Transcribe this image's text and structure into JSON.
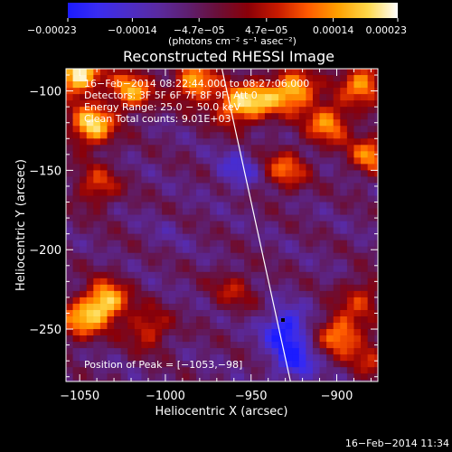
{
  "chart_data": {
    "type": "heatmap",
    "title": "Reconstructed RHESSI Image",
    "xlabel": "Heliocentric X (arcsec)",
    "ylabel": "Heliocentric Y (arcsec)",
    "xlim": [
      -1058,
      -876
    ],
    "ylim": [
      -283,
      -86
    ],
    "x_ticks": [
      -1050,
      -1000,
      -950,
      -900
    ],
    "x_tick_labels": [
      "−1050",
      "−1000",
      "−950",
      "−900"
    ],
    "y_ticks": [
      -100,
      -150,
      -200,
      -250
    ],
    "y_tick_labels": [
      "−100",
      "−150",
      "−200",
      "−250"
    ],
    "colorbar": {
      "range": [
        -0.00023,
        0.00023
      ],
      "ticks": [
        -0.00023,
        -0.00014,
        -4.7e-05,
        4.7e-05,
        0.00014,
        0.00023
      ],
      "tick_labels": [
        "−0.00023",
        "−0.00014",
        "−4.7e−05",
        "4.7e−05",
        "0.00014",
        "0.00023"
      ],
      "unit_label": "(photons cm⁻² s⁻¹ asec⁻²)"
    },
    "annotations": [
      "16−Feb−2014 08:22:44.000 to 08:27:06.000",
      "Detectors: 3F 5F 6F 7F 8F 9F, Att 0",
      "Energy Range: 25.0 − 50.0 keV",
      "Clean    Total counts: 9.01E+03"
    ],
    "peak_label": "Position of Peak = [−1053,−98]",
    "peak_position": [
      -1053,
      -98
    ],
    "limb_line": [
      [
        -967,
        -86
      ],
      [
        -927,
        -283
      ]
    ],
    "timestamp": "16−Feb−2014 11:34",
    "colormap": [
      "#1b1bff",
      "#3a2cf0",
      "#4c2dc8",
      "#5a2aa0",
      "#5e1f70",
      "#6a0f38",
      "#8a0008",
      "#c81a00",
      "#ff5a00",
      "#ffa000",
      "#ffd84a",
      "#ffffff"
    ],
    "hotspots": [
      {
        "x": -1051,
        "y": -90,
        "value": 0.00023
      },
      {
        "x": -1043,
        "y": -122,
        "value": 0.0002
      },
      {
        "x": -1020,
        "y": -100,
        "value": 0.00015
      },
      {
        "x": -983,
        "y": -95,
        "value": 0.00016
      },
      {
        "x": -960,
        "y": -110,
        "value": 0.00013
      },
      {
        "x": -945,
        "y": -105,
        "value": 0.00012
      },
      {
        "x": -925,
        "y": -100,
        "value": 0.00018
      },
      {
        "x": -905,
        "y": -120,
        "value": 0.00014
      },
      {
        "x": -885,
        "y": -95,
        "value": 0.00015
      },
      {
        "x": -880,
        "y": -140,
        "value": 0.00012
      },
      {
        "x": -930,
        "y": -150,
        "value": 0.0001
      },
      {
        "x": -1040,
        "y": -160,
        "value": 8e-05
      },
      {
        "x": -1035,
        "y": -233,
        "value": 0.0002
      },
      {
        "x": -1050,
        "y": -245,
        "value": 0.00012
      },
      {
        "x": -1010,
        "y": -250,
        "value": 8e-05
      },
      {
        "x": -898,
        "y": -253,
        "value": 0.00014
      },
      {
        "x": -885,
        "y": -230,
        "value": 6e-05
      },
      {
        "x": -880,
        "y": -268,
        "value": 5e-05
      },
      {
        "x": -960,
        "y": -225,
        "value": 4e-05
      }
    ],
    "coldspots": [
      {
        "x": -957,
        "y": -150,
        "value": -0.00015
      },
      {
        "x": -930,
        "y": -250,
        "value": -0.00023
      },
      {
        "x": -925,
        "y": -270,
        "value": -0.0002
      },
      {
        "x": -1000,
        "y": -190,
        "value": -8e-05
      },
      {
        "x": -1030,
        "y": -200,
        "value": -5e-05
      },
      {
        "x": -975,
        "y": -270,
        "value": -6e-05
      }
    ]
  }
}
